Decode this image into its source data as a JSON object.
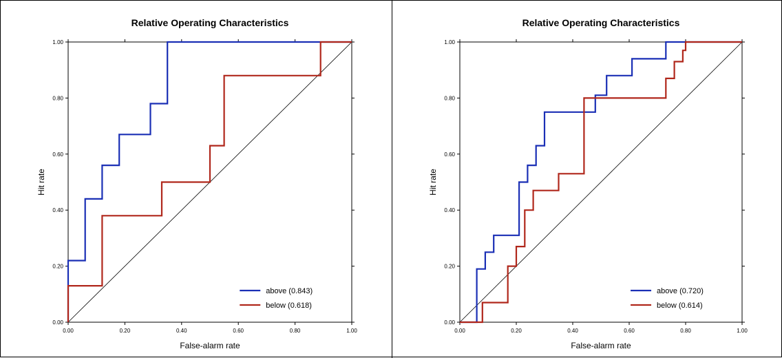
{
  "figure": {
    "chart_data": [
      {
        "type": "line",
        "title": "Relative Operating Characteristics",
        "xlabel": "False-alarm rate",
        "ylabel": "Hit rate",
        "xlim": [
          0,
          1
        ],
        "ylim": [
          0,
          1
        ],
        "xticks": [
          "0.00",
          "0.20",
          "0.40",
          "0.60",
          "0.80",
          "1.00"
        ],
        "yticks": [
          "0.00",
          "0.20",
          "0.40",
          "0.60",
          "0.80",
          "1.00"
        ],
        "grid": false,
        "legend_position": "bottom-right",
        "reference_line": {
          "x": [
            0,
            1
          ],
          "y": [
            0,
            1
          ],
          "color": "#000000"
        },
        "series": [
          {
            "name": "above (0.843)",
            "color": "#1a2fb5",
            "x": [
              0.0,
              0.0,
              0.06,
              0.06,
              0.12,
              0.12,
              0.18,
              0.18,
              0.29,
              0.29,
              0.35,
              0.35,
              1.0
            ],
            "y": [
              0.0,
              0.22,
              0.22,
              0.44,
              0.44,
              0.56,
              0.56,
              0.67,
              0.67,
              0.78,
              0.78,
              1.0,
              1.0
            ]
          },
          {
            "name": "below (0.618)",
            "color": "#b0271b",
            "x": [
              0.0,
              0.0,
              0.12,
              0.12,
              0.33,
              0.33,
              0.5,
              0.5,
              0.55,
              0.55,
              0.89,
              0.89,
              1.0
            ],
            "y": [
              0.0,
              0.13,
              0.13,
              0.38,
              0.38,
              0.5,
              0.5,
              0.63,
              0.63,
              0.88,
              0.88,
              1.0,
              1.0
            ]
          }
        ]
      },
      {
        "type": "line",
        "title": "Relative Operating Characteristics",
        "xlabel": "False-alarm rate",
        "ylabel": "Hit rate",
        "xlim": [
          0,
          1
        ],
        "ylim": [
          0,
          1
        ],
        "xticks": [
          "0.00",
          "0.20",
          "0.40",
          "0.60",
          "0.80",
          "1.00"
        ],
        "yticks": [
          "0.00",
          "0.20",
          "0.40",
          "0.60",
          "0.80",
          "1.00"
        ],
        "grid": false,
        "legend_position": "bottom-right",
        "reference_line": {
          "x": [
            0,
            1
          ],
          "y": [
            0,
            1
          ],
          "color": "#000000"
        },
        "series": [
          {
            "name": "above (0.720)",
            "color": "#1a2fb5",
            "x": [
              0.0,
              0.06,
              0.06,
              0.09,
              0.09,
              0.12,
              0.12,
              0.21,
              0.21,
              0.24,
              0.24,
              0.27,
              0.27,
              0.3,
              0.3,
              0.48,
              0.48,
              0.52,
              0.52,
              0.61,
              0.61,
              0.73,
              0.73,
              1.0
            ],
            "y": [
              0.0,
              0.0,
              0.19,
              0.19,
              0.25,
              0.25,
              0.31,
              0.31,
              0.5,
              0.5,
              0.56,
              0.56,
              0.63,
              0.63,
              0.75,
              0.75,
              0.81,
              0.81,
              0.88,
              0.88,
              0.94,
              0.94,
              1.0,
              1.0
            ]
          },
          {
            "name": "below (0.614)",
            "color": "#b0271b",
            "x": [
              0.0,
              0.08,
              0.08,
              0.17,
              0.17,
              0.2,
              0.2,
              0.23,
              0.23,
              0.26,
              0.26,
              0.35,
              0.35,
              0.44,
              0.44,
              0.73,
              0.73,
              0.76,
              0.76,
              0.79,
              0.79,
              0.8,
              0.8,
              1.0
            ],
            "y": [
              0.0,
              0.0,
              0.07,
              0.07,
              0.2,
              0.2,
              0.27,
              0.27,
              0.4,
              0.4,
              0.47,
              0.47,
              0.53,
              0.53,
              0.8,
              0.8,
              0.87,
              0.87,
              0.93,
              0.93,
              0.97,
              0.97,
              1.0,
              1.0
            ]
          }
        ]
      }
    ]
  }
}
